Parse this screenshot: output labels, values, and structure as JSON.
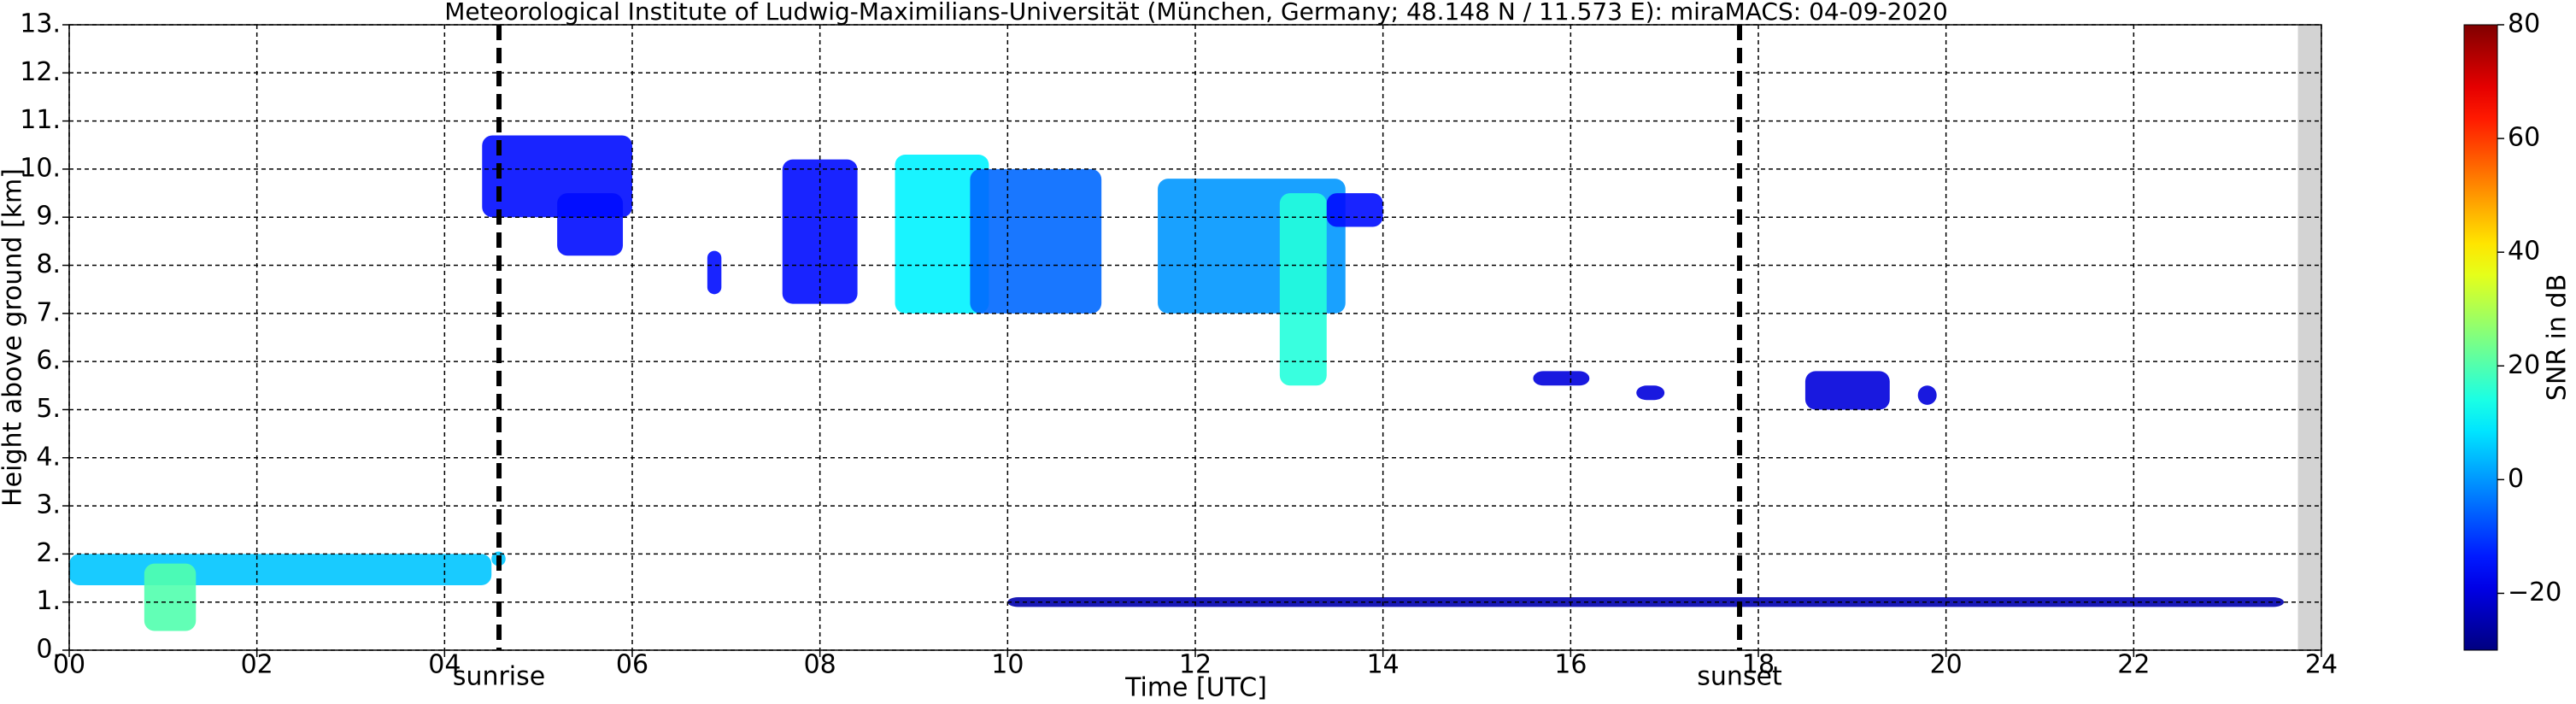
{
  "chart_data": {
    "type": "time-height",
    "title": "Meteorological Institute of Ludwig-Maximilians-Universität (München, Germany; 48.148 N / 11.573 E):    miraMACS: 04-09-2020",
    "x_label": "Time [UTC]",
    "y_label": "Height above ground [km]",
    "xlim": [
      0,
      24
    ],
    "ylim": [
      0,
      13
    ],
    "xticks": [
      {
        "value": 0,
        "label": "00"
      },
      {
        "value": 2,
        "label": "02"
      },
      {
        "value": 4,
        "label": "04"
      },
      {
        "value": 6,
        "label": "06"
      },
      {
        "value": 8,
        "label": "08"
      },
      {
        "value": 10,
        "label": "10"
      },
      {
        "value": 12,
        "label": "12"
      },
      {
        "value": 14,
        "label": "14"
      },
      {
        "value": 16,
        "label": "16"
      },
      {
        "value": 18,
        "label": "18"
      },
      {
        "value": 20,
        "label": "20"
      },
      {
        "value": 22,
        "label": "22"
      },
      {
        "value": 24,
        "label": "24"
      }
    ],
    "yticks": [
      {
        "value": 0,
        "label": "0."
      },
      {
        "value": 1,
        "label": "1."
      },
      {
        "value": 2,
        "label": "2."
      },
      {
        "value": 3,
        "label": "3."
      },
      {
        "value": 4,
        "label": "4."
      },
      {
        "value": 5,
        "label": "5."
      },
      {
        "value": 6,
        "label": "6."
      },
      {
        "value": 7,
        "label": "7."
      },
      {
        "value": 8,
        "label": "8."
      },
      {
        "value": 9,
        "label": "9."
      },
      {
        "value": 10,
        "label": "10."
      },
      {
        "value": 11,
        "label": "11."
      },
      {
        "value": 12,
        "label": "12."
      },
      {
        "value": 13,
        "label": "13."
      }
    ],
    "grid": true,
    "colorbar": {
      "label": "SNR in dB",
      "lim": [
        -30,
        80
      ],
      "colormap": "jet",
      "ticks": [
        {
          "value": -20,
          "label": "−20"
        },
        0,
        20,
        40,
        60,
        80
      ]
    },
    "events": [
      {
        "label": "sunrise",
        "time": 4.58
      },
      {
        "label": "sunset",
        "time": 17.8
      }
    ],
    "missing_data": [
      23.75,
      24
    ],
    "echoes": [
      {
        "time": [
          0.0,
          4.5
        ],
        "height": [
          1.35,
          2.0
        ],
        "snr": 5
      },
      {
        "time": [
          0.8,
          1.35
        ],
        "height": [
          0.4,
          1.8
        ],
        "snr": 20
      },
      {
        "time": [
          4.5,
          4.65
        ],
        "height": [
          1.75,
          2.05
        ],
        "snr": 5
      },
      {
        "time": [
          4.4,
          6.0
        ],
        "height": [
          9.0,
          10.7
        ],
        "snr": -15
      },
      {
        "time": [
          5.2,
          5.9
        ],
        "height": [
          8.2,
          9.5
        ],
        "snr": -15
      },
      {
        "time": [
          6.8,
          6.95
        ],
        "height": [
          7.4,
          8.3
        ],
        "snr": -15
      },
      {
        "time": [
          7.6,
          8.4
        ],
        "height": [
          7.2,
          10.2
        ],
        "snr": -15
      },
      {
        "time": [
          8.8,
          9.8
        ],
        "height": [
          7.0,
          10.3
        ],
        "snr": 10
      },
      {
        "time": [
          9.6,
          11.0
        ],
        "height": [
          7.0,
          10.0
        ],
        "snr": -5
      },
      {
        "time": [
          11.6,
          13.6
        ],
        "height": [
          7.0,
          9.8
        ],
        "snr": 0
      },
      {
        "time": [
          12.9,
          13.4
        ],
        "height": [
          5.5,
          9.5
        ],
        "snr": 15
      },
      {
        "time": [
          13.4,
          14.0
        ],
        "height": [
          8.8,
          9.5
        ],
        "snr": -15
      },
      {
        "time": [
          15.6,
          16.2
        ],
        "height": [
          5.5,
          5.8
        ],
        "snr": -20
      },
      {
        "time": [
          16.7,
          17.0
        ],
        "height": [
          5.2,
          5.5
        ],
        "snr": -20
      },
      {
        "time": [
          18.5,
          19.4
        ],
        "height": [
          5.0,
          5.8
        ],
        "snr": -20
      },
      {
        "time": [
          19.7,
          19.9
        ],
        "height": [
          5.1,
          5.5
        ],
        "snr": -20
      },
      {
        "time": [
          10.0,
          23.6
        ],
        "height": [
          0.9,
          1.1
        ],
        "snr": -25
      }
    ]
  }
}
